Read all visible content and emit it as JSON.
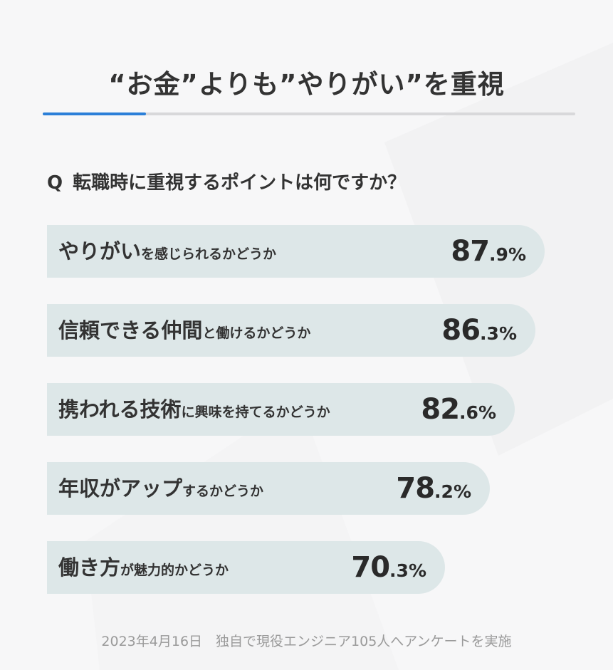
{
  "title": "“お金”よりも”やりがい”を重視",
  "question": {
    "marker": "Q",
    "text": "転職時に重視するポイントは何ですか？"
  },
  "chart_data": {
    "type": "bar",
    "orientation": "horizontal",
    "unit": "%",
    "xlim": [
      0,
      100
    ],
    "categories": [
      "やりがいを感じられるかどうか",
      "信頼できる仲間と働けるかどうか",
      "携われる技術に興味を持てるかどうか",
      "年収がアップするかどうか",
      "働き方が魅力的かどうか"
    ],
    "values": [
      87.9,
      86.3,
      82.6,
      78.2,
      70.3
    ],
    "labels": [
      {
        "main": "やりがい",
        "sub": "を感じられるかどうか",
        "int": "87",
        "dec": ".9%"
      },
      {
        "main": "信頼できる仲間",
        "sub": "と働けるかどうか",
        "int": "86",
        "dec": ".3%"
      },
      {
        "main": "携われる技術",
        "sub": "に興味を持てるかどうか",
        "int": "82",
        "dec": ".6%"
      },
      {
        "main": "年収がアップ",
        "sub": "するかどうか",
        "int": "78",
        "dec": ".2%"
      },
      {
        "main": "働き方",
        "sub": "が魅力的かどうか",
        "int": "70",
        "dec": ".3%"
      }
    ]
  },
  "footer": "2023年4月16日　独自で現役エンジニア105人へアンケートを実施",
  "colors": {
    "bar": "#dde7e8",
    "accent": "#2b7fd8",
    "rule": "#d8d8da",
    "text": "#333333",
    "footer": "#9a9a9a"
  }
}
